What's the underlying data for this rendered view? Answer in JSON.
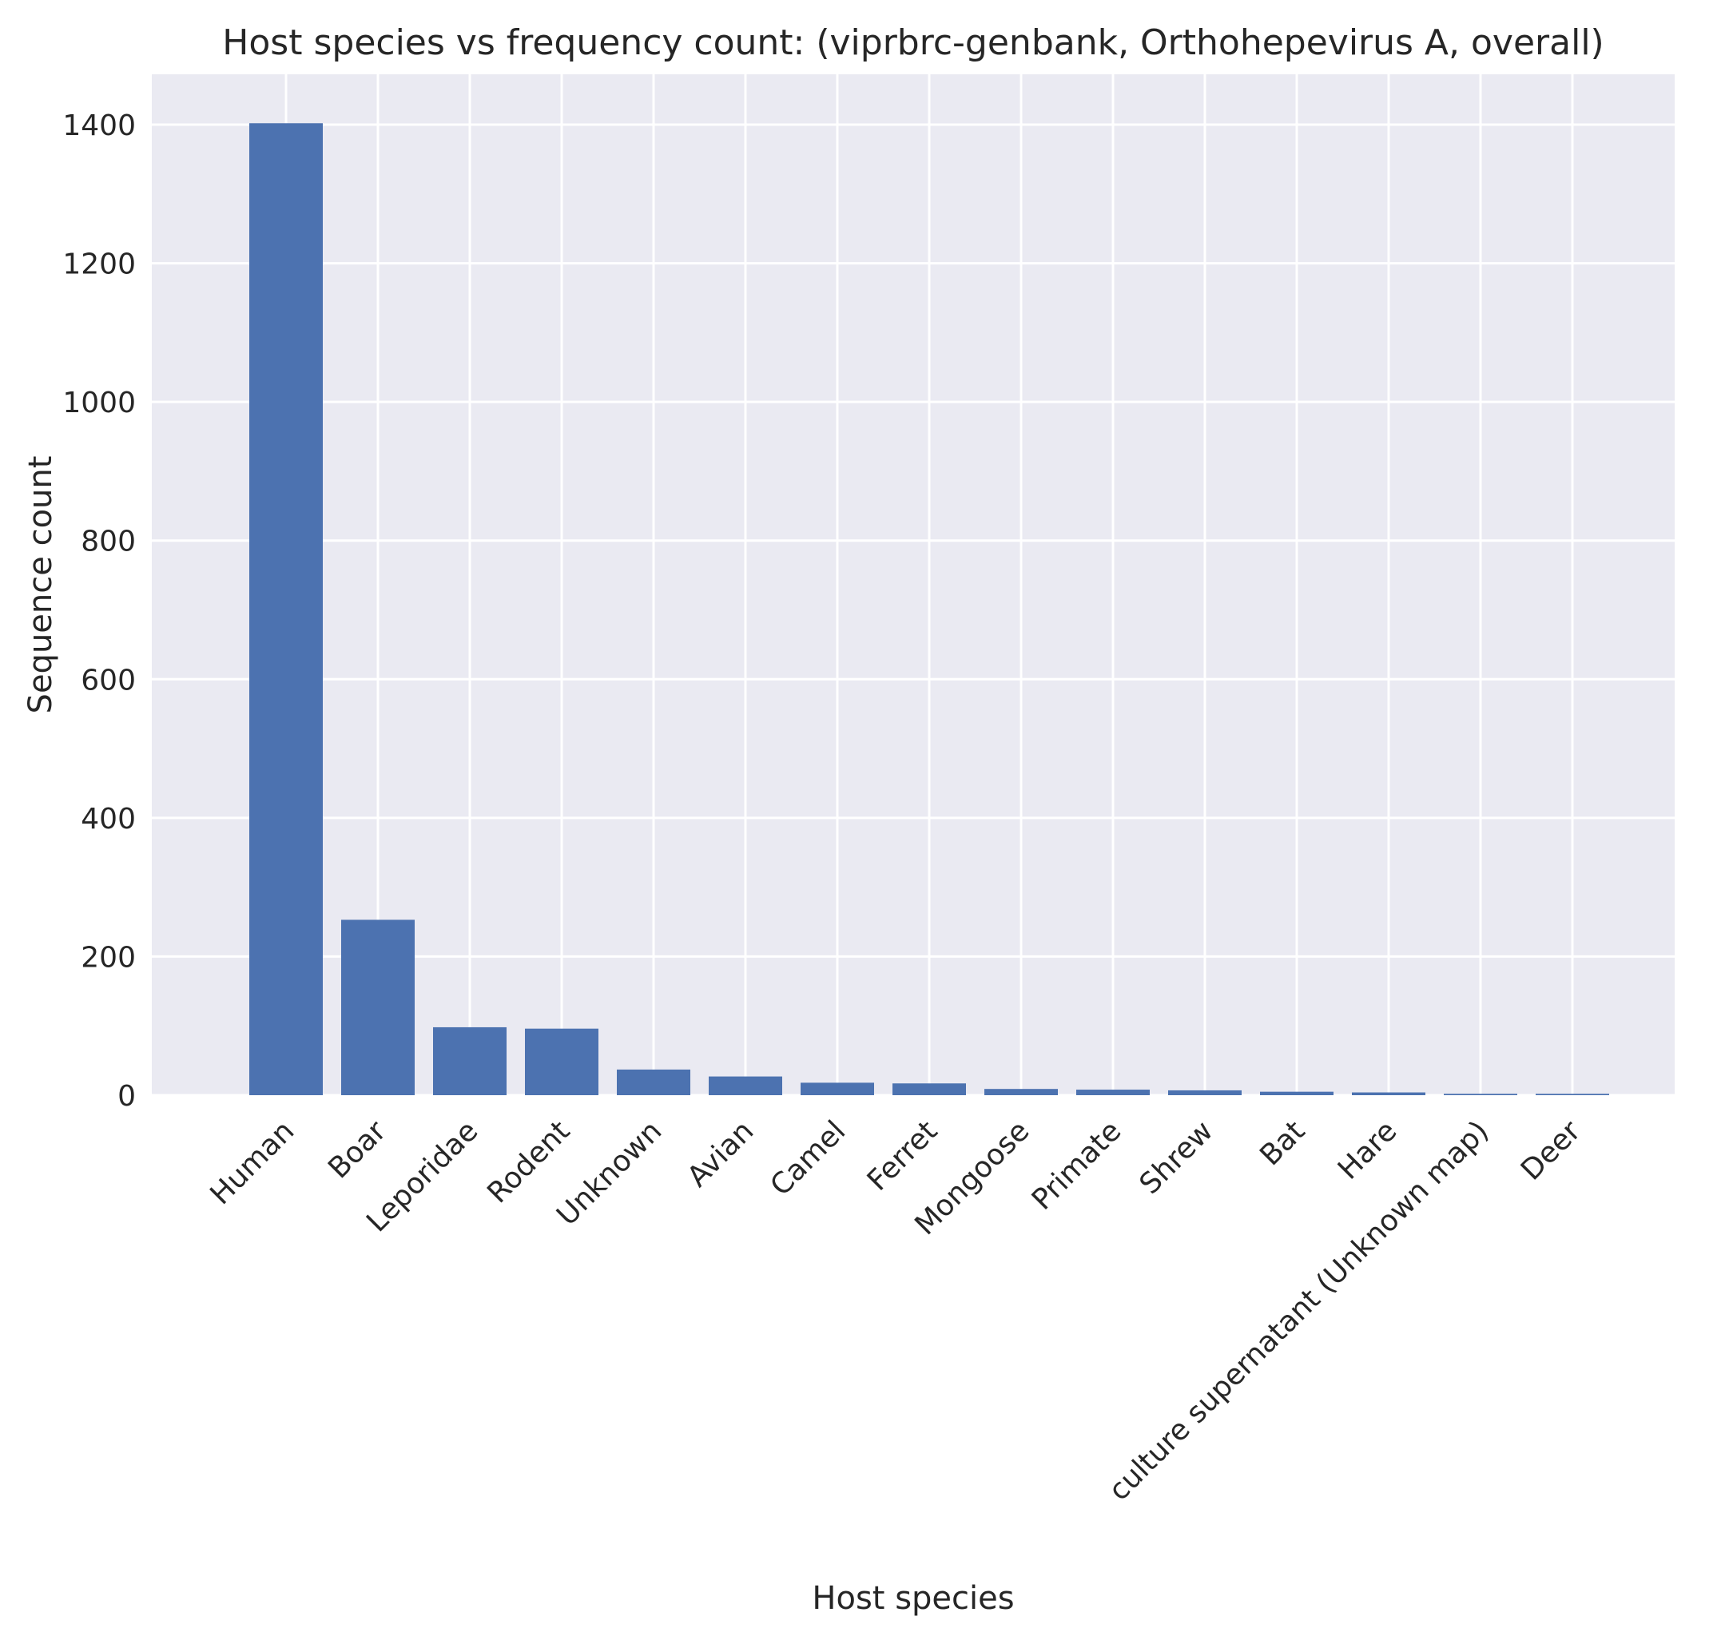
{
  "chart_data": {
    "type": "bar",
    "title": "Host species vs frequency count: (viprbrc-genbank, Orthohepevirus A, overall)",
    "xlabel": "Host species",
    "ylabel": "Sequence count",
    "categories": [
      "Human",
      "Boar",
      "Leporidae",
      "Rodent",
      "Unknown",
      "Avian",
      "Camel",
      "Ferret",
      "Mongoose",
      "Primate",
      "Shrew",
      "Bat",
      "Hare",
      "culture supernatant (Unknown map)",
      "Deer"
    ],
    "values": [
      1402,
      253,
      98,
      96,
      37,
      27,
      18,
      17,
      9,
      8,
      7,
      5,
      4,
      2,
      2
    ],
    "ylim": [
      0,
      1472
    ],
    "yticks": [
      0,
      200,
      400,
      600,
      800,
      1000,
      1200,
      1400
    ],
    "grid": true,
    "legend": "none",
    "colors": {
      "bar": "#4c72b0",
      "plot_bg": "#eaeaf2",
      "grid": "#ffffff",
      "text": "#262626"
    }
  }
}
